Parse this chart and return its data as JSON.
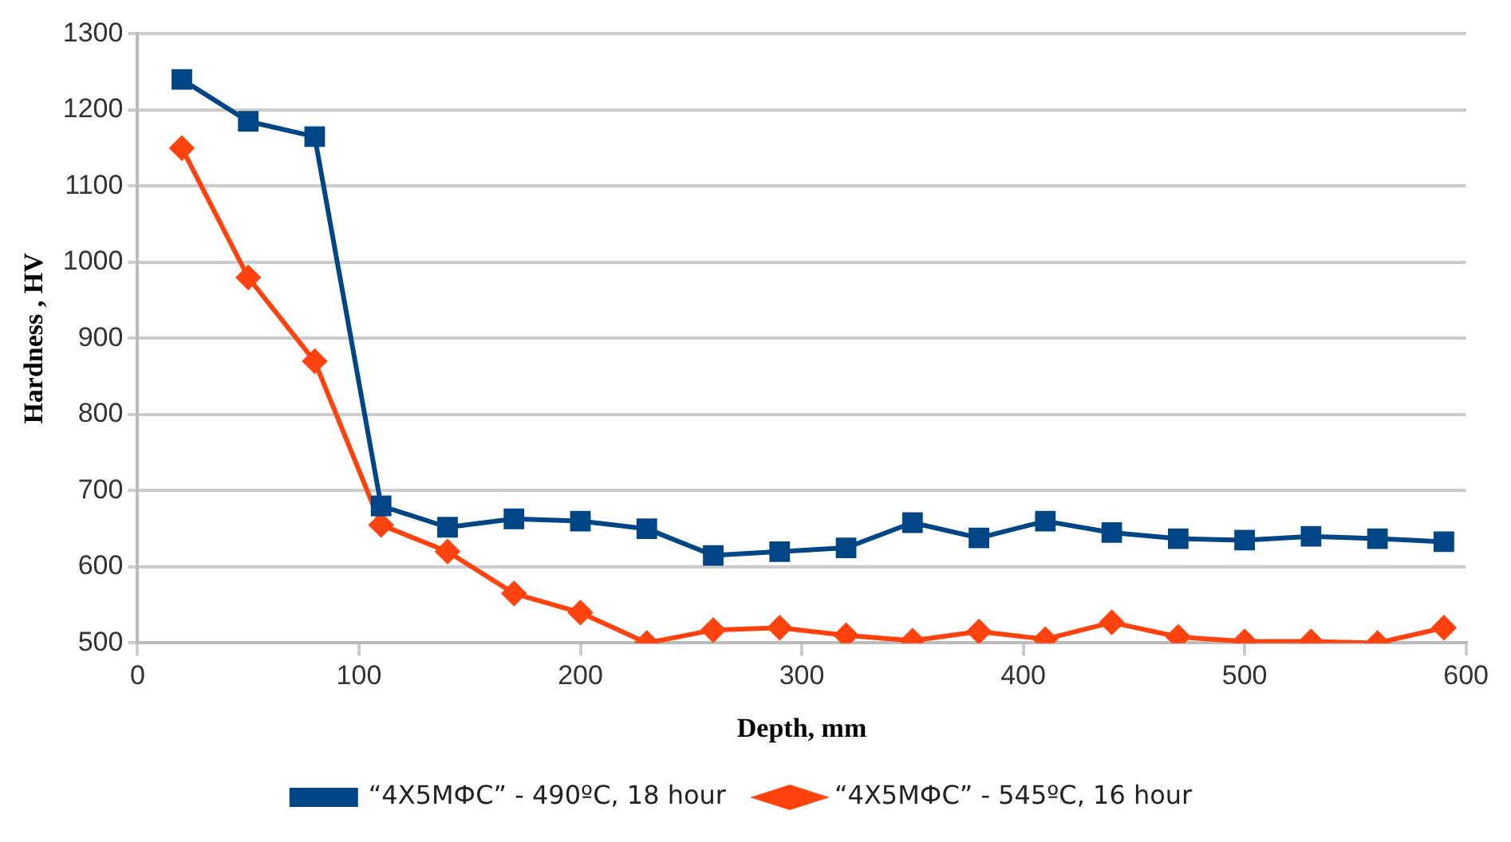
{
  "chart_data": {
    "type": "line",
    "xlabel": "Depth, mm",
    "ylabel": "Hardness , HV",
    "x": [
      20,
      50,
      80,
      110,
      140,
      170,
      200,
      230,
      260,
      290,
      320,
      350,
      380,
      410,
      440,
      470,
      500,
      530,
      560,
      590
    ],
    "series": [
      {
        "name": "“4X5MФС” - 490ºC, 18 hour",
        "color": "#004586",
        "marker": "square",
        "values": [
          1240,
          1185,
          1165,
          680,
          652,
          663,
          660,
          650,
          615,
          620,
          625,
          658,
          638,
          660,
          645,
          637,
          635,
          640,
          637,
          633
        ]
      },
      {
        "name": "“4X5MФС” - 545ºC, 16 hour",
        "color": "#ff420e",
        "marker": "diamond",
        "values": [
          1150,
          980,
          870,
          655,
          620,
          565,
          540,
          500,
          517,
          520,
          510,
          503,
          515,
          505,
          527,
          508,
          502,
          502,
          500,
          520
        ]
      }
    ],
    "xlim": [
      0,
      600
    ],
    "xticks": [
      0,
      100,
      200,
      300,
      400,
      500,
      600
    ],
    "ylim": [
      500,
      1300
    ],
    "yticks": [
      500,
      600,
      700,
      800,
      900,
      1000,
      1100,
      1200,
      1300
    ],
    "grid": "y",
    "legend": "bottom"
  }
}
